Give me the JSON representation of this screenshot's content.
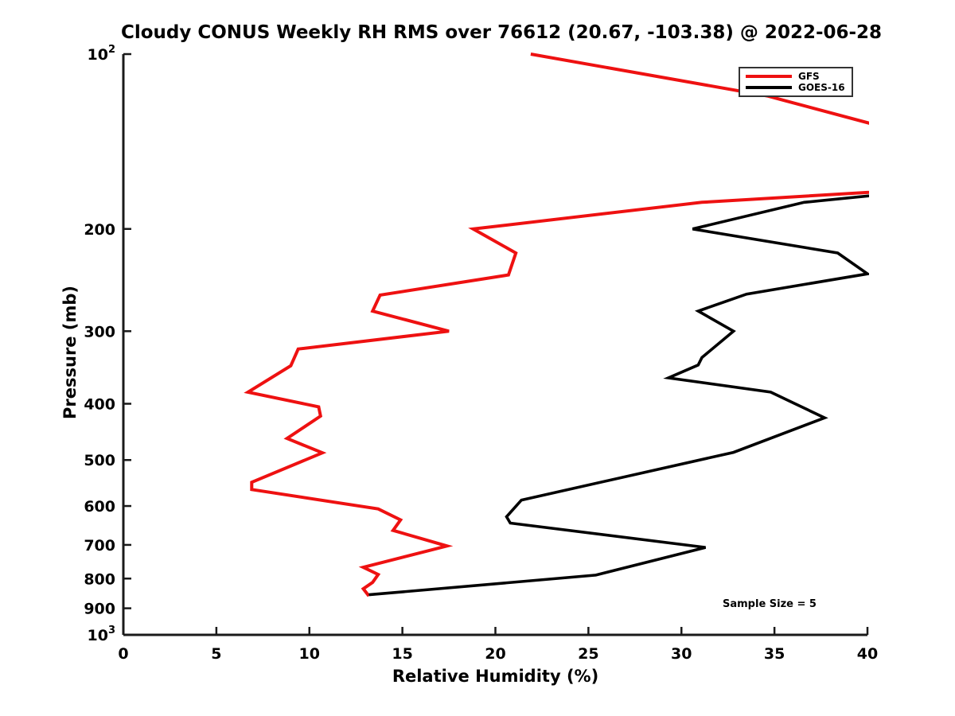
{
  "title": "Cloudy CONUS Weekly RH RMS over 76612 (20.67, -103.38) @ 2022-06-28",
  "axes": {
    "xlabel": "Relative Humidity (%)",
    "ylabel": "Pressure (mb)",
    "xticks": [
      0,
      5,
      10,
      15,
      20,
      25,
      30,
      35,
      40
    ],
    "ytick_values": [
      100,
      200,
      300,
      400,
      500,
      600,
      700,
      800,
      900,
      1000
    ],
    "ytick_labels": [
      "10^2",
      "200",
      "300",
      "400",
      "500",
      "600",
      "700",
      "800",
      "900",
      "10^3"
    ]
  },
  "annotation": {
    "text": "Sample Size = 5"
  },
  "legend": {
    "items": [
      {
        "label": "GFS",
        "color": "#ee1111"
      },
      {
        "label": "GOES-16",
        "color": "#000000"
      }
    ]
  },
  "chart_data": {
    "type": "line",
    "title": "Cloudy CONUS Weekly RH RMS over 76612 (20.67, -103.38) @ 2022-06-28",
    "xlabel": "Relative Humidity (%)",
    "ylabel": "Pressure (mb)",
    "xlim": [
      0,
      40
    ],
    "ylim": [
      100,
      1000
    ],
    "yscale": "log",
    "y_direction": "inverted-pressure-increases-downward",
    "grid": false,
    "legend_position": "upper right",
    "annotation": "Sample Size = 5",
    "note": "Points with RH above 40 exceed the x-range and the line is clipped at the right plot edge",
    "series": [
      {
        "name": "GFS",
        "color": "#ee1111",
        "linewidth": 4,
        "points_rh_pressure": [
          [
            21.9,
            100
          ],
          [
            34.6,
            118
          ],
          [
            44.0,
            142
          ],
          [
            44.0,
            170
          ],
          [
            31.1,
            180
          ],
          [
            18.8,
            200
          ],
          [
            21.1,
            220
          ],
          [
            20.7,
            240
          ],
          [
            13.8,
            260
          ],
          [
            13.4,
            277
          ],
          [
            17.5,
            300
          ],
          [
            9.4,
            322
          ],
          [
            9.0,
            344
          ],
          [
            6.7,
            382
          ],
          [
            10.5,
            405
          ],
          [
            10.6,
            420
          ],
          [
            8.8,
            459
          ],
          [
            10.7,
            486
          ],
          [
            6.9,
            546
          ],
          [
            6.9,
            562
          ],
          [
            13.7,
            607
          ],
          [
            14.9,
            634
          ],
          [
            14.5,
            661
          ],
          [
            17.4,
            703
          ],
          [
            12.9,
            765
          ],
          [
            13.7,
            787
          ],
          [
            13.4,
            812
          ],
          [
            12.9,
            833
          ],
          [
            13.2,
            857
          ]
        ]
      },
      {
        "name": "GOES-16",
        "color": "#000000",
        "linewidth": 3.6,
        "points_rh_pressure": [
          [
            42.0,
            173
          ],
          [
            36.6,
            180
          ],
          [
            30.6,
            200
          ],
          [
            38.4,
            220
          ],
          [
            40.0,
            239
          ],
          [
            33.5,
            259
          ],
          [
            30.9,
            277
          ],
          [
            32.8,
            300
          ],
          [
            31.1,
            333
          ],
          [
            30.9,
            343
          ],
          [
            29.3,
            361
          ],
          [
            34.8,
            382
          ],
          [
            37.7,
            423
          ],
          [
            32.8,
            485
          ],
          [
            21.4,
            586
          ],
          [
            20.6,
            626
          ],
          [
            20.8,
            642
          ],
          [
            31.3,
            707
          ],
          [
            25.4,
            789
          ],
          [
            13.2,
            853
          ]
        ]
      }
    ]
  }
}
